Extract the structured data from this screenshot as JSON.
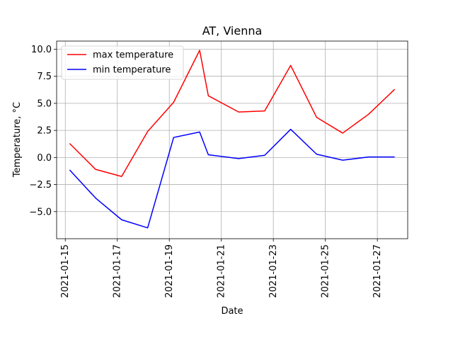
{
  "chart_data": {
    "type": "line",
    "title": "AT, Vienna",
    "xlabel": "Date",
    "ylabel": "Temperature, °C",
    "x": [
      "2021-01-15",
      "2021-01-16",
      "2021-01-17",
      "2021-01-18",
      "2021-01-19",
      "2021-01-20",
      "2021-01-20T12:00",
      "2021-01-21T12:00",
      "2021-01-22T12:00",
      "2021-01-23T12:00",
      "2021-01-24T12:00",
      "2021-01-25T12:00",
      "2021-01-26T12:00",
      "2021-01-27T12:00"
    ],
    "x_display_ticks": [
      "2021-01-15",
      "2021-01-17",
      "2021-01-19",
      "2021-01-21",
      "2021-01-23",
      "2021-01-25",
      "2021-01-27"
    ],
    "y_ticks": [
      "−5.0",
      "−2.5",
      "0.0",
      "2.5",
      "5.0",
      "7.5",
      "10.0"
    ],
    "y_tick_values": [
      -5,
      -2.5,
      0,
      2.5,
      5,
      7.5,
      10
    ],
    "ylim": [
      -7.5,
      10.75
    ],
    "grid": true,
    "legend_position": "upper-left",
    "series": [
      {
        "name": "max temperature",
        "color": "#ff0000",
        "points": [
          [
            "2021-01-15T04:00",
            1.3
          ],
          [
            "2021-01-16T04:00",
            -1.1
          ],
          [
            "2021-01-17T04:00",
            -1.75
          ],
          [
            "2021-01-18T04:00",
            2.4
          ],
          [
            "2021-01-19T04:00",
            5.1
          ],
          [
            "2021-01-20T04:00",
            9.9
          ],
          [
            "2021-01-20T12:00",
            5.7
          ],
          [
            "2021-01-21T16:00",
            4.2
          ],
          [
            "2021-01-22T16:00",
            4.3
          ],
          [
            "2021-01-23T16:00",
            8.5
          ],
          [
            "2021-01-24T16:00",
            3.7
          ],
          [
            "2021-01-25T16:00",
            2.25
          ],
          [
            "2021-01-26T16:00",
            4.0
          ],
          [
            "2021-01-27T16:00",
            6.3
          ]
        ]
      },
      {
        "name": "min temperature",
        "color": "#0000ff",
        "points": [
          [
            "2021-01-15T04:00",
            -1.15
          ],
          [
            "2021-01-16T04:00",
            -3.75
          ],
          [
            "2021-01-17T04:00",
            -5.75
          ],
          [
            "2021-01-18T04:00",
            -6.5
          ],
          [
            "2021-01-19T04:00",
            1.85
          ],
          [
            "2021-01-20T04:00",
            2.35
          ],
          [
            "2021-01-20T12:00",
            0.25
          ],
          [
            "2021-01-21T16:00",
            -0.1
          ],
          [
            "2021-01-22T16:00",
            0.2
          ],
          [
            "2021-01-23T16:00",
            2.6
          ],
          [
            "2021-01-24T16:00",
            0.3
          ],
          [
            "2021-01-25T16:00",
            -0.25
          ],
          [
            "2021-01-26T16:00",
            0.05
          ],
          [
            "2021-01-27T16:00",
            0.05
          ]
        ]
      }
    ]
  }
}
